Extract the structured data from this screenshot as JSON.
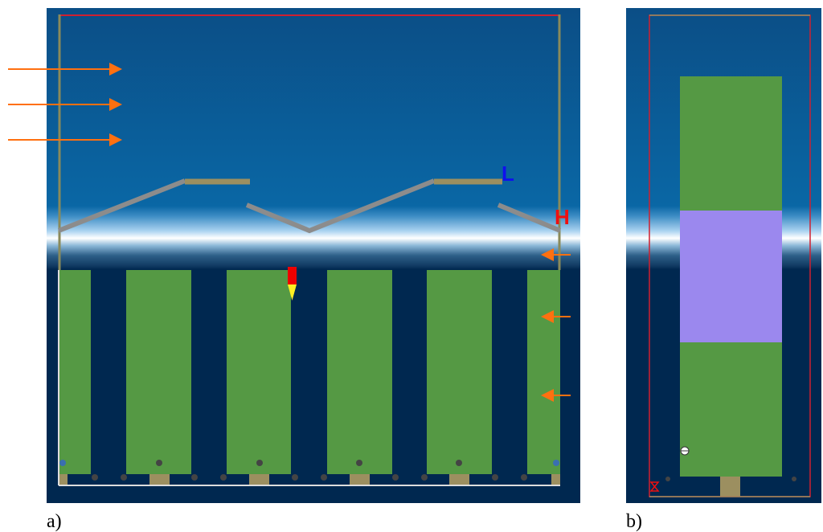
{
  "panels": [
    {
      "label": "a)"
    },
    {
      "label": "b)"
    }
  ],
  "annotations": [
    "L",
    "H"
  ]
}
